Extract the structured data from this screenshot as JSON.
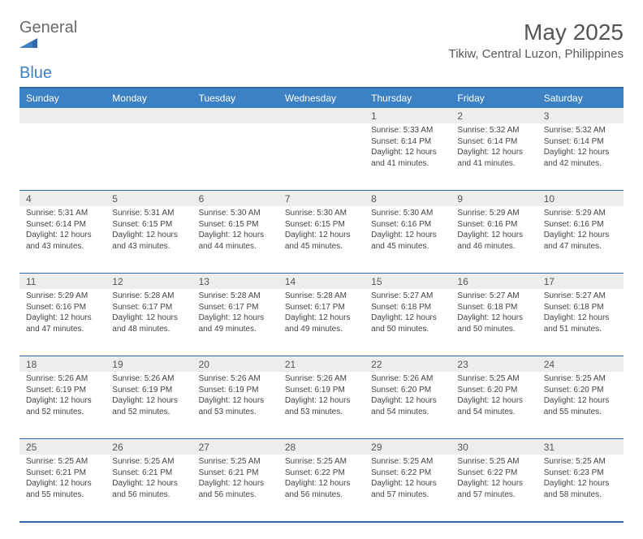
{
  "brand": {
    "part1": "General",
    "part2": "Blue"
  },
  "title": "May 2025",
  "subtitle": "Tikiw, Central Luzon, Philippines",
  "colors": {
    "header_bg": "#3b81c3",
    "header_border": "#2f6aa8",
    "daynum_bg": "#ededed",
    "text": "#333333",
    "title_text": "#555555"
  },
  "day_names": [
    "Sunday",
    "Monday",
    "Tuesday",
    "Wednesday",
    "Thursday",
    "Friday",
    "Saturday"
  ],
  "weeks": [
    [
      {
        "n": "",
        "sr": "",
        "ss": "",
        "dl": ""
      },
      {
        "n": "",
        "sr": "",
        "ss": "",
        "dl": ""
      },
      {
        "n": "",
        "sr": "",
        "ss": "",
        "dl": ""
      },
      {
        "n": "",
        "sr": "",
        "ss": "",
        "dl": ""
      },
      {
        "n": "1",
        "sr": "Sunrise: 5:33 AM",
        "ss": "Sunset: 6:14 PM",
        "dl": "Daylight: 12 hours and 41 minutes."
      },
      {
        "n": "2",
        "sr": "Sunrise: 5:32 AM",
        "ss": "Sunset: 6:14 PM",
        "dl": "Daylight: 12 hours and 41 minutes."
      },
      {
        "n": "3",
        "sr": "Sunrise: 5:32 AM",
        "ss": "Sunset: 6:14 PM",
        "dl": "Daylight: 12 hours and 42 minutes."
      }
    ],
    [
      {
        "n": "4",
        "sr": "Sunrise: 5:31 AM",
        "ss": "Sunset: 6:14 PM",
        "dl": "Daylight: 12 hours and 43 minutes."
      },
      {
        "n": "5",
        "sr": "Sunrise: 5:31 AM",
        "ss": "Sunset: 6:15 PM",
        "dl": "Daylight: 12 hours and 43 minutes."
      },
      {
        "n": "6",
        "sr": "Sunrise: 5:30 AM",
        "ss": "Sunset: 6:15 PM",
        "dl": "Daylight: 12 hours and 44 minutes."
      },
      {
        "n": "7",
        "sr": "Sunrise: 5:30 AM",
        "ss": "Sunset: 6:15 PM",
        "dl": "Daylight: 12 hours and 45 minutes."
      },
      {
        "n": "8",
        "sr": "Sunrise: 5:30 AM",
        "ss": "Sunset: 6:16 PM",
        "dl": "Daylight: 12 hours and 45 minutes."
      },
      {
        "n": "9",
        "sr": "Sunrise: 5:29 AM",
        "ss": "Sunset: 6:16 PM",
        "dl": "Daylight: 12 hours and 46 minutes."
      },
      {
        "n": "10",
        "sr": "Sunrise: 5:29 AM",
        "ss": "Sunset: 6:16 PM",
        "dl": "Daylight: 12 hours and 47 minutes."
      }
    ],
    [
      {
        "n": "11",
        "sr": "Sunrise: 5:29 AM",
        "ss": "Sunset: 6:16 PM",
        "dl": "Daylight: 12 hours and 47 minutes."
      },
      {
        "n": "12",
        "sr": "Sunrise: 5:28 AM",
        "ss": "Sunset: 6:17 PM",
        "dl": "Daylight: 12 hours and 48 minutes."
      },
      {
        "n": "13",
        "sr": "Sunrise: 5:28 AM",
        "ss": "Sunset: 6:17 PM",
        "dl": "Daylight: 12 hours and 49 minutes."
      },
      {
        "n": "14",
        "sr": "Sunrise: 5:28 AM",
        "ss": "Sunset: 6:17 PM",
        "dl": "Daylight: 12 hours and 49 minutes."
      },
      {
        "n": "15",
        "sr": "Sunrise: 5:27 AM",
        "ss": "Sunset: 6:18 PM",
        "dl": "Daylight: 12 hours and 50 minutes."
      },
      {
        "n": "16",
        "sr": "Sunrise: 5:27 AM",
        "ss": "Sunset: 6:18 PM",
        "dl": "Daylight: 12 hours and 50 minutes."
      },
      {
        "n": "17",
        "sr": "Sunrise: 5:27 AM",
        "ss": "Sunset: 6:18 PM",
        "dl": "Daylight: 12 hours and 51 minutes."
      }
    ],
    [
      {
        "n": "18",
        "sr": "Sunrise: 5:26 AM",
        "ss": "Sunset: 6:19 PM",
        "dl": "Daylight: 12 hours and 52 minutes."
      },
      {
        "n": "19",
        "sr": "Sunrise: 5:26 AM",
        "ss": "Sunset: 6:19 PM",
        "dl": "Daylight: 12 hours and 52 minutes."
      },
      {
        "n": "20",
        "sr": "Sunrise: 5:26 AM",
        "ss": "Sunset: 6:19 PM",
        "dl": "Daylight: 12 hours and 53 minutes."
      },
      {
        "n": "21",
        "sr": "Sunrise: 5:26 AM",
        "ss": "Sunset: 6:19 PM",
        "dl": "Daylight: 12 hours and 53 minutes."
      },
      {
        "n": "22",
        "sr": "Sunrise: 5:26 AM",
        "ss": "Sunset: 6:20 PM",
        "dl": "Daylight: 12 hours and 54 minutes."
      },
      {
        "n": "23",
        "sr": "Sunrise: 5:25 AM",
        "ss": "Sunset: 6:20 PM",
        "dl": "Daylight: 12 hours and 54 minutes."
      },
      {
        "n": "24",
        "sr": "Sunrise: 5:25 AM",
        "ss": "Sunset: 6:20 PM",
        "dl": "Daylight: 12 hours and 55 minutes."
      }
    ],
    [
      {
        "n": "25",
        "sr": "Sunrise: 5:25 AM",
        "ss": "Sunset: 6:21 PM",
        "dl": "Daylight: 12 hours and 55 minutes."
      },
      {
        "n": "26",
        "sr": "Sunrise: 5:25 AM",
        "ss": "Sunset: 6:21 PM",
        "dl": "Daylight: 12 hours and 56 minutes."
      },
      {
        "n": "27",
        "sr": "Sunrise: 5:25 AM",
        "ss": "Sunset: 6:21 PM",
        "dl": "Daylight: 12 hours and 56 minutes."
      },
      {
        "n": "28",
        "sr": "Sunrise: 5:25 AM",
        "ss": "Sunset: 6:22 PM",
        "dl": "Daylight: 12 hours and 56 minutes."
      },
      {
        "n": "29",
        "sr": "Sunrise: 5:25 AM",
        "ss": "Sunset: 6:22 PM",
        "dl": "Daylight: 12 hours and 57 minutes."
      },
      {
        "n": "30",
        "sr": "Sunrise: 5:25 AM",
        "ss": "Sunset: 6:22 PM",
        "dl": "Daylight: 12 hours and 57 minutes."
      },
      {
        "n": "31",
        "sr": "Sunrise: 5:25 AM",
        "ss": "Sunset: 6:23 PM",
        "dl": "Daylight: 12 hours and 58 minutes."
      }
    ]
  ]
}
